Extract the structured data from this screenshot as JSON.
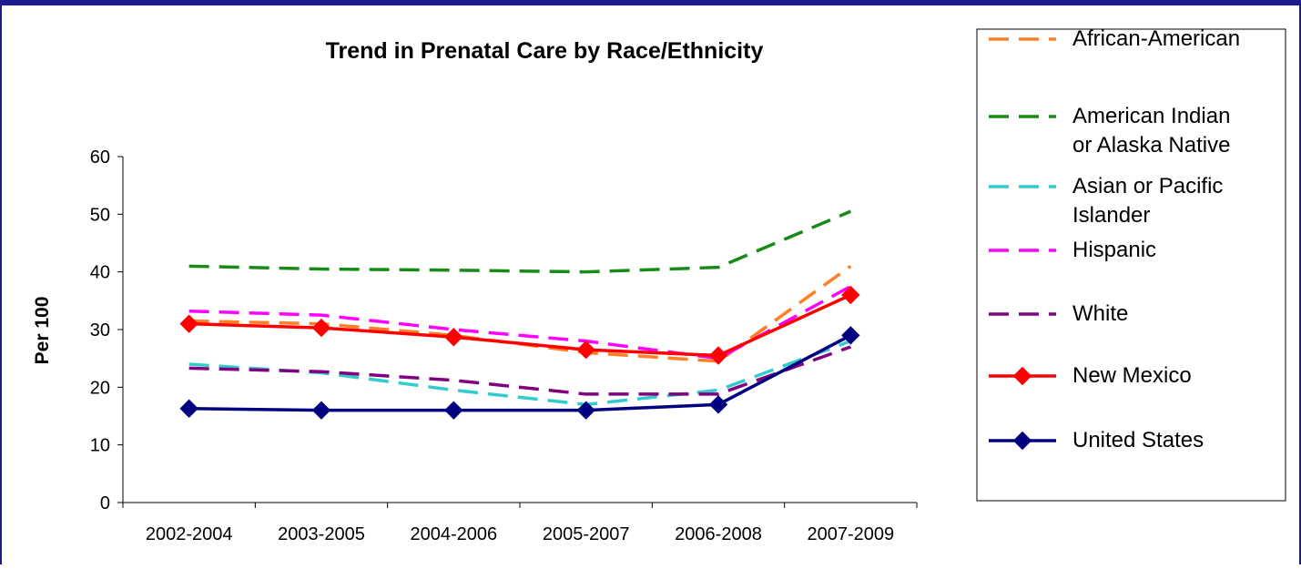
{
  "chart_data": {
    "type": "line",
    "title": "Trend in Prenatal Care by Race/Ethnicity",
    "xlabel": "",
    "ylabel": "Per 100",
    "ylim": [
      0,
      60
    ],
    "yticks": [
      "0",
      "10",
      "20",
      "30",
      "40",
      "50",
      "60"
    ],
    "categories": [
      "2002-2004",
      "2003-2005",
      "2004-2006",
      "2005-2007",
      "2006-2008",
      "2007-2009"
    ],
    "legend_position": "right",
    "grid": false,
    "series": [
      {
        "name": "African-American",
        "color": "#ff7f27",
        "style": "dashed",
        "marker": "none",
        "values": [
          31.5,
          31,
          29,
          26,
          24.5,
          41
        ]
      },
      {
        "name": "American Indian or Alaska Native",
        "color": "#178a17",
        "style": "dashed",
        "marker": "none",
        "values": [
          41,
          40.5,
          40.3,
          40,
          40.8,
          50.5
        ]
      },
      {
        "name": "Asian or Pacific Islander",
        "color": "#33cccc",
        "style": "dashed",
        "marker": "none",
        "values": [
          24,
          22.5,
          19.5,
          17,
          19.5,
          28
        ]
      },
      {
        "name": "Hispanic",
        "color": "#ff00ff",
        "style": "dashed",
        "marker": "none",
        "values": [
          33.2,
          32.5,
          30,
          28,
          25,
          37.5
        ]
      },
      {
        "name": "White",
        "color": "#800080",
        "style": "dashed",
        "marker": "none",
        "values": [
          23.3,
          22.7,
          21.2,
          18.8,
          18.8,
          27
        ]
      },
      {
        "name": "New Mexico",
        "color": "#ff0000",
        "style": "solid",
        "marker": "diamond",
        "marker_color": "#ff0000",
        "values": [
          31,
          30.3,
          28.7,
          26.5,
          25.5,
          36
        ]
      },
      {
        "name": "United States",
        "color": "#000080",
        "style": "solid",
        "marker": "diamond",
        "marker_color": "#000080",
        "values": [
          16.3,
          16,
          16,
          16,
          17,
          29
        ]
      }
    ],
    "legend_lines": {
      "African-American": [
        "African-American"
      ],
      "American Indian or Alaska Native": [
        "American Indian",
        "or Alaska Native"
      ],
      "Asian or Pacific Islander": [
        "Asian or Pacific",
        "Islander"
      ],
      "Hispanic": [
        "Hispanic"
      ],
      "White": [
        "White"
      ],
      "New Mexico": [
        "New Mexico"
      ],
      "United States": [
        "United States"
      ]
    }
  }
}
